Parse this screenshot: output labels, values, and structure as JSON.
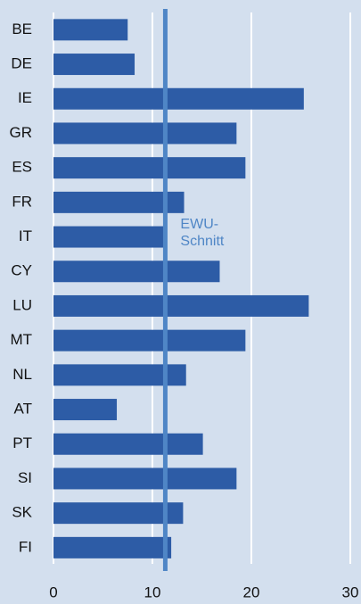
{
  "chart_data": {
    "type": "bar",
    "orientation": "horizontal",
    "categories": [
      "BE",
      "DE",
      "IE",
      "GR",
      "ES",
      "FR",
      "IT",
      "CY",
      "LU",
      "MT",
      "NL",
      "AT",
      "PT",
      "SI",
      "SK",
      "FI"
    ],
    "values": [
      7.5,
      8.2,
      25.3,
      18.5,
      19.4,
      13.2,
      11.1,
      16.8,
      25.8,
      19.4,
      13.4,
      6.4,
      15.1,
      18.5,
      13.1,
      11.9
    ],
    "color": "#2d5ca6",
    "xlim": [
      0,
      30
    ],
    "xticks": [
      0,
      10,
      20,
      30
    ],
    "grid": true,
    "reference_line": {
      "value": 11.3,
      "label_lines": [
        "EWU-",
        "Schnitt"
      ],
      "color": "#4f86c6"
    }
  }
}
